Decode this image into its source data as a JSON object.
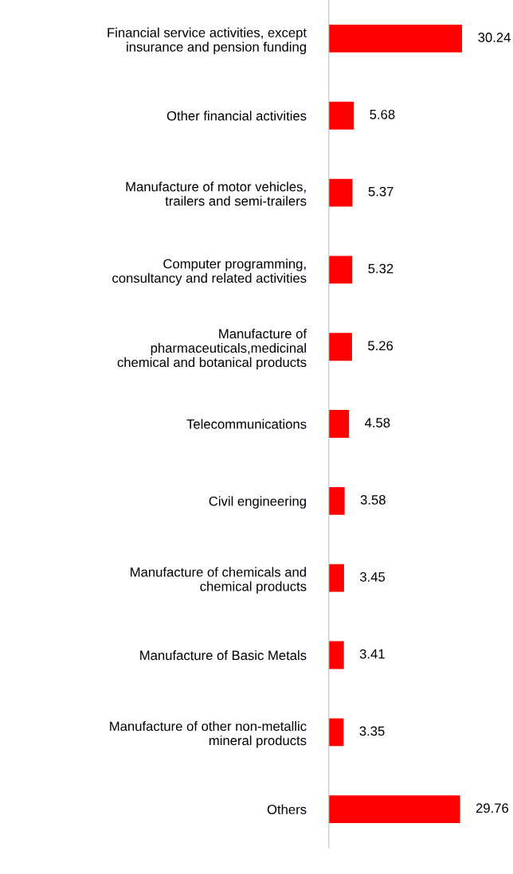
{
  "chart_data": {
    "type": "bar",
    "orientation": "horizontal",
    "data_labels": true,
    "grid": false,
    "legend": false,
    "categories": [
      "Financial service activities, except\ninsurance and pension funding",
      "Other financial activities",
      "Manufacture of motor vehicles,\ntrailers and semi-trailers",
      "Computer programming,\nconsultancy and related activities",
      "Manufacture of\npharmaceuticals,medicinal\nchemical and botanical products",
      "Telecommunications",
      "Civil engineering",
      "Manufacture of chemicals and\nchemical products",
      "Manufacture of Basic Metals",
      "Manufacture of other non-metallic\nmineral products",
      "Others"
    ],
    "values": [
      30.24,
      5.68,
      5.37,
      5.32,
      5.26,
      4.58,
      3.58,
      3.45,
      3.41,
      3.35,
      29.76
    ],
    "color": "#ff0000"
  }
}
